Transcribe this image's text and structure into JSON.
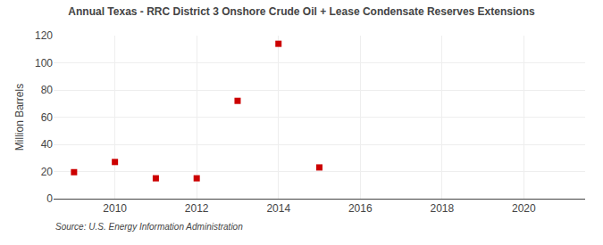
{
  "chart_data": {
    "type": "scatter",
    "title": "Annual Texas - RRC District 3 Onshore Crude Oil + Lease Condensate Reserves Extensions",
    "ylabel": "Million Barrels",
    "annotations": [
      "Source: U.S. Energy Information Administration"
    ],
    "x": [
      2009,
      2010,
      2011,
      2012,
      2013,
      2014,
      2015
    ],
    "values": [
      19.5,
      27.0,
      15.0,
      15.0,
      72.0,
      114.0,
      23.0
    ],
    "xlim": [
      2008.5,
      2021.5
    ],
    "xticks": [
      2010,
      2012,
      2014,
      2016,
      2018,
      2020
    ],
    "ylim": [
      0,
      120
    ],
    "yticks": [
      0,
      20,
      40,
      60,
      80,
      100,
      120
    ],
    "color": "#cc0000",
    "marker": "square",
    "grid": true
  }
}
